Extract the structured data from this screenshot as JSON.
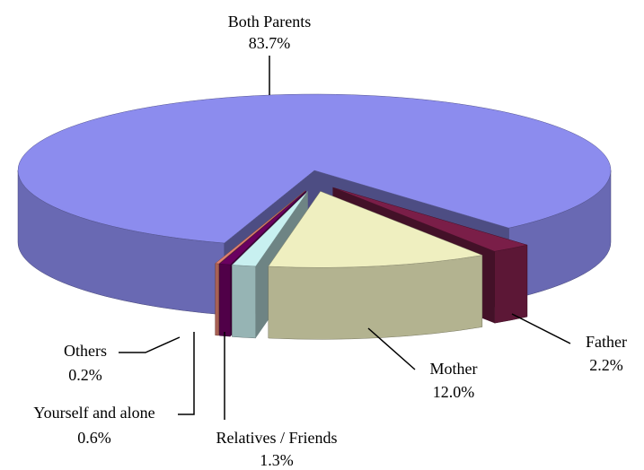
{
  "chart_data": {
    "type": "pie",
    "categories": [
      "Both Parents",
      "Father",
      "Mother",
      "Relatives / Friends",
      "Yourself and alone",
      "Others"
    ],
    "values": [
      83.7,
      2.2,
      12.0,
      1.3,
      0.6,
      0.2
    ],
    "value_labels": [
      "83.7%",
      "2.2%",
      "12.0%",
      "1.3%",
      "0.6%",
      "0.2%"
    ],
    "colors": [
      "#8c8cee",
      "#7a1e48",
      "#efefc0",
      "#c8f0f0",
      "#6a0060",
      "#e08070"
    ]
  }
}
